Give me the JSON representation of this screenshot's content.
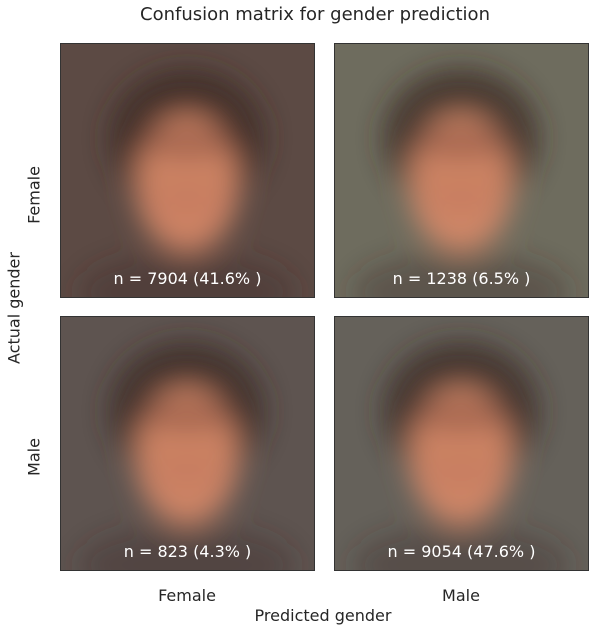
{
  "chart_data": {
    "type": "heatmap",
    "title": "Confusion matrix for gender prediction",
    "xlabel": "Predicted gender",
    "ylabel": "Actual gender",
    "row_labels": [
      "Female",
      "Male"
    ],
    "col_labels": [
      "Female",
      "Male"
    ],
    "cells": [
      [
        {
          "count": 7904,
          "text": "n = 7904 (41.6% )"
        },
        {
          "count": 1238,
          "text": "n = 1238 (6.5% )"
        }
      ],
      [
        {
          "count": 823,
          "text": "n = 823 (4.3% )"
        },
        {
          "count": 9054,
          "text": "n = 9054 (47.6% )"
        }
      ]
    ]
  },
  "style": {
    "cell_backgrounds": [
      [
        "#5c4a44",
        "#6e6c5e"
      ],
      [
        "#5e5450",
        "#65615a"
      ]
    ],
    "hair_color": "#3a2a24",
    "skin_color": "#d98a68"
  }
}
